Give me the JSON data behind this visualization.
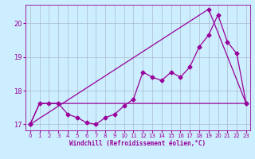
{
  "xlabel": "Windchill (Refroidissement éolien,°C)",
  "bg_color": "#cceeff",
  "line_color": "#990099",
  "grid_color": "#aabbcc",
  "ylim": [
    16.82,
    20.55
  ],
  "xlim": [
    -0.5,
    23.4
  ],
  "yticks": [
    17,
    18,
    19,
    20
  ],
  "xticks": [
    0,
    1,
    2,
    3,
    4,
    5,
    6,
    7,
    8,
    9,
    10,
    11,
    12,
    13,
    14,
    15,
    16,
    17,
    18,
    19,
    20,
    21,
    22,
    23
  ],
  "line1_x": [
    0,
    1,
    2,
    3,
    4,
    5,
    6,
    7,
    8,
    9,
    10,
    11,
    12,
    13,
    14,
    15,
    16,
    17,
    18,
    19,
    20,
    21,
    22,
    23
  ],
  "line1_y": [
    17.0,
    17.62,
    17.62,
    17.62,
    17.62,
    17.62,
    17.62,
    17.62,
    17.62,
    17.62,
    17.62,
    17.62,
    17.62,
    17.62,
    17.62,
    17.62,
    17.62,
    17.62,
    17.62,
    17.62,
    17.62,
    17.62,
    17.62,
    17.62
  ],
  "line2_x": [
    0,
    1,
    2,
    3,
    4,
    5,
    6,
    7,
    8,
    9,
    10,
    11,
    12,
    13,
    14,
    15,
    16,
    17,
    18,
    19,
    20,
    21,
    22,
    23
  ],
  "line2_y": [
    17.0,
    17.62,
    17.62,
    17.62,
    17.3,
    17.2,
    17.05,
    17.0,
    17.2,
    17.3,
    17.55,
    17.75,
    18.55,
    18.4,
    18.3,
    18.55,
    18.4,
    18.7,
    19.3,
    19.65,
    20.25,
    19.45,
    19.1,
    17.62
  ],
  "line3_x": [
    0,
    19,
    23
  ],
  "line3_y": [
    17.0,
    20.42,
    17.62
  ],
  "marker": "D",
  "markersize": 2.5,
  "linewidth": 0.9
}
